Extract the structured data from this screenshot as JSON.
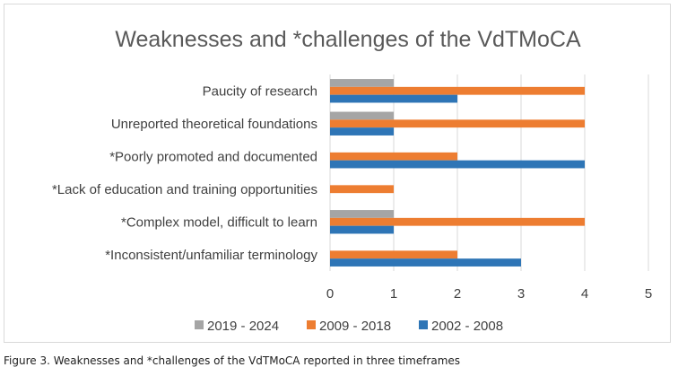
{
  "caption": "Figure 3. Weaknesses and *challenges of the VdTMoCA reported in three timeframes",
  "chart_data": {
    "type": "bar",
    "orientation": "horizontal",
    "title": "Weaknesses and *challenges of the VdTMoCA",
    "categories": [
      "Paucity of research",
      "Unreported theoretical foundations",
      "*Poorly promoted and documented",
      "*Lack of education and training opportunities",
      "*Complex model, difficult to learn",
      "*Inconsistent/unfamiliar terminology"
    ],
    "series": [
      {
        "name": "2019 - 2024",
        "color": "#a5a5a5",
        "values": [
          1,
          1,
          0,
          0,
          1,
          0
        ]
      },
      {
        "name": "2009 - 2018",
        "color": "#ed7d31",
        "values": [
          4,
          4,
          2,
          1,
          4,
          2
        ]
      },
      {
        "name": "2002 - 2008",
        "color": "#2e75b6",
        "values": [
          2,
          1,
          4,
          0,
          1,
          3
        ]
      }
    ],
    "xlim": [
      0,
      5
    ],
    "xticks": [
      "0",
      "1",
      "2",
      "3",
      "4",
      "5"
    ],
    "grid": true,
    "legend_position": "bottom"
  }
}
